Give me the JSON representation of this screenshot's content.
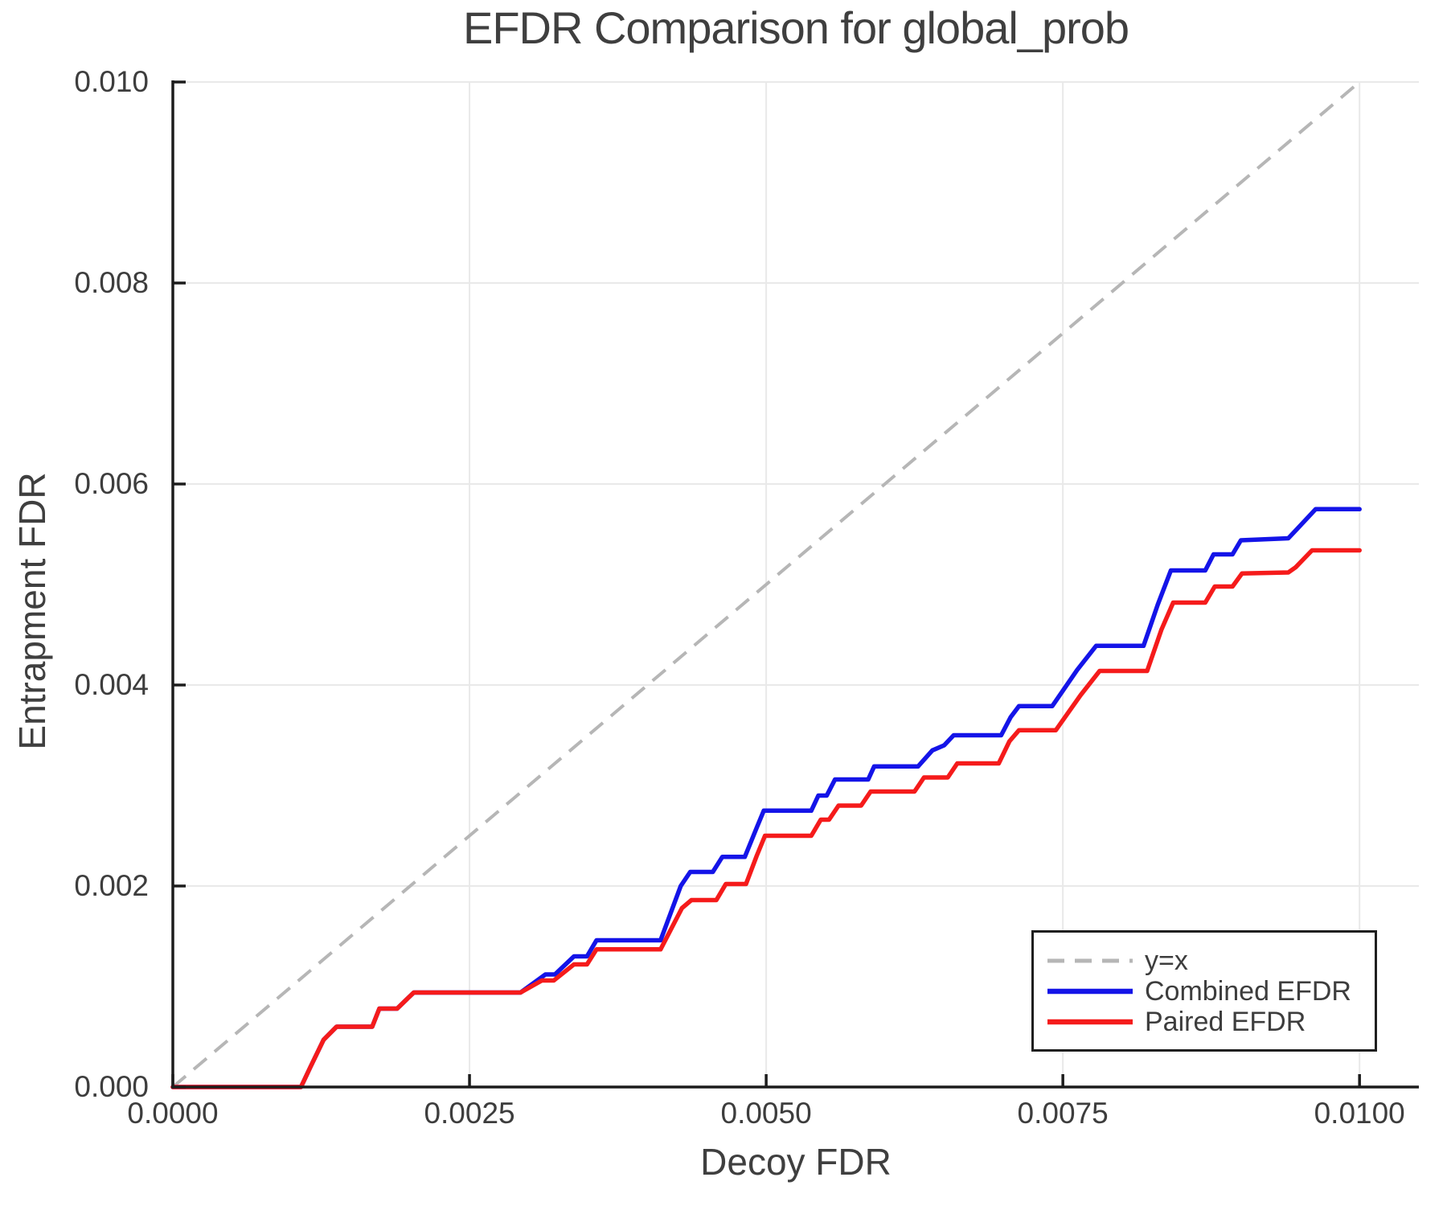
{
  "colors": {
    "background": "#ffffff",
    "grid": "#e9e9e9",
    "spine": "#1c1c1c",
    "text": "#3d3d3d",
    "identity_line": "#b6b6b6",
    "combined": "#1414e8",
    "paired": "#f51b1b"
  },
  "chart_data": {
    "type": "line",
    "title": "EFDR Comparison for global_prob",
    "xlabel": "Decoy FDR",
    "ylabel": "Entrapment FDR",
    "xlim": [
      0,
      0.0105
    ],
    "ylim": [
      0,
      0.01
    ],
    "grid": true,
    "legend_position": "lower right",
    "x_ticks": {
      "values": [
        0,
        0.0025,
        0.005,
        0.0075,
        0.01
      ],
      "labels": [
        "0.0000",
        "0.0025",
        "0.0050",
        "0.0075",
        "0.0100"
      ]
    },
    "y_ticks": {
      "values": [
        0,
        0.002,
        0.004,
        0.006,
        0.008,
        0.01
      ],
      "labels": [
        "0.000",
        "0.002",
        "0.004",
        "0.006",
        "0.008",
        "0.010"
      ]
    },
    "series": [
      {
        "name": "y=x",
        "color": "#b6b6b6",
        "width": 4,
        "dash": [
          21,
          13
        ],
        "points": [
          [
            0,
            0
          ],
          [
            0.01,
            0.01
          ]
        ]
      },
      {
        "name": "Combined EFDR",
        "color": "#1414e8",
        "width": 5.5,
        "dash": null,
        "points": [
          [
            0,
            0
          ],
          [
            0.00108,
            0
          ],
          [
            0.00116,
            0.0002
          ],
          [
            0.00127,
            0.00047
          ],
          [
            0.00138,
            0.0006
          ],
          [
            0.00168,
            0.0006
          ],
          [
            0.00174,
            0.00078
          ],
          [
            0.00189,
            0.00078
          ],
          [
            0.00203,
            0.00094
          ],
          [
            0.00293,
            0.00094
          ],
          [
            0.00314,
            0.00112
          ],
          [
            0.00322,
            0.00112
          ],
          [
            0.00338,
            0.0013
          ],
          [
            0.00349,
            0.0013
          ],
          [
            0.00357,
            0.00146
          ],
          [
            0.00411,
            0.00146
          ],
          [
            0.00428,
            0.002
          ],
          [
            0.00436,
            0.00214
          ],
          [
            0.00455,
            0.00214
          ],
          [
            0.00463,
            0.00229
          ],
          [
            0.00482,
            0.00229
          ],
          [
            0.00492,
            0.00258
          ],
          [
            0.00498,
            0.00275
          ],
          [
            0.00538,
            0.00275
          ],
          [
            0.00544,
            0.0029
          ],
          [
            0.00551,
            0.0029
          ],
          [
            0.00558,
            0.00306
          ],
          [
            0.00586,
            0.00306
          ],
          [
            0.00591,
            0.00319
          ],
          [
            0.00628,
            0.00319
          ],
          [
            0.0064,
            0.00335
          ],
          [
            0.0065,
            0.0034
          ],
          [
            0.00658,
            0.0035
          ],
          [
            0.00698,
            0.0035
          ],
          [
            0.00706,
            0.00368
          ],
          [
            0.00713,
            0.00379
          ],
          [
            0.00741,
            0.00379
          ],
          [
            0.00762,
            0.00415
          ],
          [
            0.00778,
            0.00439
          ],
          [
            0.00818,
            0.00439
          ],
          [
            0.0083,
            0.0048
          ],
          [
            0.00841,
            0.00514
          ],
          [
            0.0087,
            0.00514
          ],
          [
            0.00877,
            0.0053
          ],
          [
            0.00893,
            0.0053
          ],
          [
            0.009,
            0.00544
          ],
          [
            0.0094,
            0.00546
          ],
          [
            0.00948,
            0.00556
          ],
          [
            0.00963,
            0.00575
          ],
          [
            0.01,
            0.00575
          ]
        ]
      },
      {
        "name": "Paired EFDR",
        "color": "#f51b1b",
        "width": 5.5,
        "dash": null,
        "points": [
          [
            0,
            0
          ],
          [
            0.00108,
            0
          ],
          [
            0.00116,
            0.0002
          ],
          [
            0.00127,
            0.00047
          ],
          [
            0.00138,
            0.0006
          ],
          [
            0.00168,
            0.0006
          ],
          [
            0.00174,
            0.00078
          ],
          [
            0.00189,
            0.00078
          ],
          [
            0.00203,
            0.00094
          ],
          [
            0.00293,
            0.00094
          ],
          [
            0.00311,
            0.00106
          ],
          [
            0.00321,
            0.00106
          ],
          [
            0.00338,
            0.00122
          ],
          [
            0.00349,
            0.00122
          ],
          [
            0.00357,
            0.00137
          ],
          [
            0.00411,
            0.00137
          ],
          [
            0.00429,
            0.00178
          ],
          [
            0.00437,
            0.00186
          ],
          [
            0.00458,
            0.00186
          ],
          [
            0.00466,
            0.00202
          ],
          [
            0.00483,
            0.00202
          ],
          [
            0.00492,
            0.0023
          ],
          [
            0.00499,
            0.0025
          ],
          [
            0.00538,
            0.0025
          ],
          [
            0.00546,
            0.00266
          ],
          [
            0.00553,
            0.00266
          ],
          [
            0.00561,
            0.0028
          ],
          [
            0.0058,
            0.0028
          ],
          [
            0.00588,
            0.00294
          ],
          [
            0.00625,
            0.00294
          ],
          [
            0.00633,
            0.00308
          ],
          [
            0.00653,
            0.00308
          ],
          [
            0.00661,
            0.00322
          ],
          [
            0.00696,
            0.00322
          ],
          [
            0.00705,
            0.00344
          ],
          [
            0.00713,
            0.00355
          ],
          [
            0.00744,
            0.00355
          ],
          [
            0.00765,
            0.0039
          ],
          [
            0.00781,
            0.00414
          ],
          [
            0.00821,
            0.00414
          ],
          [
            0.00833,
            0.00455
          ],
          [
            0.00843,
            0.00482
          ],
          [
            0.0087,
            0.00482
          ],
          [
            0.00878,
            0.00498
          ],
          [
            0.00893,
            0.00498
          ],
          [
            0.00901,
            0.00511
          ],
          [
            0.0094,
            0.00512
          ],
          [
            0.00946,
            0.00517
          ],
          [
            0.0096,
            0.00534
          ],
          [
            0.01,
            0.00534
          ]
        ]
      }
    ]
  }
}
